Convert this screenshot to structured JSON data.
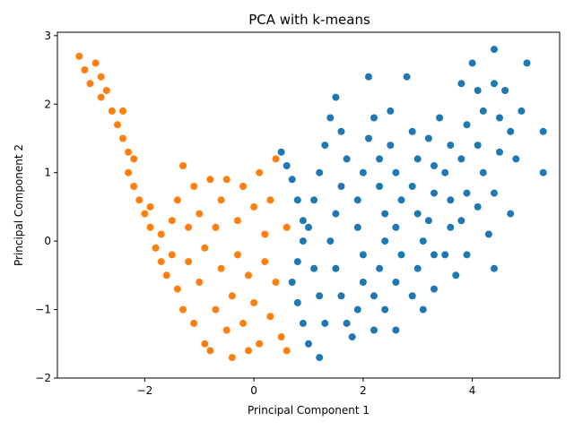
{
  "chart_data": {
    "type": "scatter",
    "title": "PCA with k-means",
    "xlabel": "Principal Component 1",
    "ylabel": "Principal Component 2",
    "xlim": [
      -3.6,
      5.6
    ],
    "ylim": [
      -2.0,
      3.05
    ],
    "xticks": [
      {
        "value": -2,
        "label": "−2"
      },
      {
        "value": 0,
        "label": "0"
      },
      {
        "value": 2,
        "label": "2"
      },
      {
        "value": 4,
        "label": "4"
      }
    ],
    "yticks": [
      {
        "value": -2,
        "label": "−2"
      },
      {
        "value": -1,
        "label": "−1"
      },
      {
        "value": 0,
        "label": "0"
      },
      {
        "value": 1,
        "label": "1"
      },
      {
        "value": 2,
        "label": "2"
      },
      {
        "value": 3,
        "label": "3"
      }
    ],
    "grid": false,
    "series": [
      {
        "color": "#1f77b4",
        "points": [
          [
            0.5,
            1.3
          ],
          [
            0.6,
            1.1
          ],
          [
            0.7,
            0.9
          ],
          [
            0.8,
            0.6
          ],
          [
            0.9,
            0.3
          ],
          [
            0.9,
            0.0
          ],
          [
            0.8,
            -0.3
          ],
          [
            0.7,
            -0.6
          ],
          [
            0.8,
            -0.9
          ],
          [
            0.9,
            -1.2
          ],
          [
            1.0,
            -1.5
          ],
          [
            1.2,
            -1.7
          ],
          [
            1.3,
            -1.2
          ],
          [
            1.2,
            -0.8
          ],
          [
            1.1,
            -0.4
          ],
          [
            1.0,
            0.2
          ],
          [
            1.1,
            0.6
          ],
          [
            1.2,
            1.0
          ],
          [
            1.3,
            1.4
          ],
          [
            1.4,
            1.8
          ],
          [
            1.5,
            2.1
          ],
          [
            1.6,
            1.6
          ],
          [
            1.7,
            1.2
          ],
          [
            1.6,
            0.8
          ],
          [
            1.5,
            0.4
          ],
          [
            1.4,
            0.0
          ],
          [
            1.5,
            -0.4
          ],
          [
            1.6,
            -0.8
          ],
          [
            1.7,
            -1.2
          ],
          [
            1.8,
            -1.4
          ],
          [
            1.9,
            -1.0
          ],
          [
            2.0,
            -0.6
          ],
          [
            2.0,
            -0.2
          ],
          [
            1.9,
            0.2
          ],
          [
            1.9,
            0.6
          ],
          [
            2.0,
            1.0
          ],
          [
            2.1,
            1.5
          ],
          [
            2.1,
            2.4
          ],
          [
            2.2,
            1.8
          ],
          [
            2.3,
            1.2
          ],
          [
            2.3,
            0.8
          ],
          [
            2.4,
            0.4
          ],
          [
            2.4,
            0.0
          ],
          [
            2.3,
            -0.4
          ],
          [
            2.2,
            -0.8
          ],
          [
            2.2,
            -1.3
          ],
          [
            2.4,
            -1.0
          ],
          [
            2.6,
            -1.3
          ],
          [
            2.6,
            -0.6
          ],
          [
            2.7,
            -0.2
          ],
          [
            2.6,
            0.2
          ],
          [
            2.7,
            0.6
          ],
          [
            2.6,
            1.0
          ],
          [
            2.5,
            1.4
          ],
          [
            2.5,
            1.9
          ],
          [
            2.8,
            2.4
          ],
          [
            2.9,
            1.6
          ],
          [
            3.0,
            1.2
          ],
          [
            2.9,
            0.8
          ],
          [
            3.0,
            0.4
          ],
          [
            3.1,
            0.0
          ],
          [
            3.0,
            -0.4
          ],
          [
            2.9,
            -0.8
          ],
          [
            3.1,
            -1.0
          ],
          [
            3.3,
            -0.7
          ],
          [
            3.3,
            -0.2
          ],
          [
            3.2,
            0.3
          ],
          [
            3.3,
            0.7
          ],
          [
            3.3,
            1.1
          ],
          [
            3.2,
            1.5
          ],
          [
            3.4,
            1.8
          ],
          [
            3.6,
            1.4
          ],
          [
            3.5,
            1.0
          ],
          [
            3.6,
            0.6
          ],
          [
            3.6,
            0.2
          ],
          [
            3.5,
            -0.2
          ],
          [
            3.7,
            -0.5
          ],
          [
            3.9,
            -0.2
          ],
          [
            3.8,
            0.3
          ],
          [
            3.9,
            0.7
          ],
          [
            3.8,
            1.2
          ],
          [
            3.9,
            1.7
          ],
          [
            3.8,
            2.3
          ],
          [
            4.1,
            2.2
          ],
          [
            4.0,
            2.6
          ],
          [
            4.2,
            1.9
          ],
          [
            4.1,
            1.4
          ],
          [
            4.2,
            1.0
          ],
          [
            4.1,
            0.5
          ],
          [
            4.3,
            0.1
          ],
          [
            4.4,
            -0.4
          ],
          [
            4.4,
            0.7
          ],
          [
            4.5,
            1.3
          ],
          [
            4.5,
            1.8
          ],
          [
            4.4,
            2.3
          ],
          [
            4.4,
            2.8
          ],
          [
            4.6,
            2.2
          ],
          [
            4.7,
            1.6
          ],
          [
            4.8,
            1.2
          ],
          [
            4.9,
            1.9
          ],
          [
            5.0,
            2.6
          ],
          [
            4.7,
            0.4
          ],
          [
            5.3,
            1.0
          ],
          [
            5.3,
            1.6
          ]
        ]
      },
      {
        "color": "#ff7f0e",
        "points": [
          [
            -3.2,
            2.7
          ],
          [
            -3.1,
            2.5
          ],
          [
            -3.0,
            2.3
          ],
          [
            -2.9,
            2.6
          ],
          [
            -2.8,
            2.4
          ],
          [
            -2.8,
            2.1
          ],
          [
            -2.7,
            2.2
          ],
          [
            -2.6,
            1.9
          ],
          [
            -2.5,
            1.7
          ],
          [
            -2.4,
            1.9
          ],
          [
            -2.4,
            1.5
          ],
          [
            -2.3,
            1.3
          ],
          [
            -2.3,
            1.0
          ],
          [
            -2.2,
            1.2
          ],
          [
            -2.2,
            0.8
          ],
          [
            -2.1,
            0.6
          ],
          [
            -2.0,
            0.4
          ],
          [
            -1.9,
            0.2
          ],
          [
            -1.9,
            0.5
          ],
          [
            -1.8,
            -0.1
          ],
          [
            -1.7,
            0.1
          ],
          [
            -1.7,
            -0.3
          ],
          [
            -1.6,
            -0.5
          ],
          [
            -1.5,
            -0.2
          ],
          [
            -1.5,
            0.3
          ],
          [
            -1.4,
            0.6
          ],
          [
            -1.4,
            -0.7
          ],
          [
            -1.3,
            -1.0
          ],
          [
            -1.3,
            1.1
          ],
          [
            -1.2,
            -0.3
          ],
          [
            -1.2,
            0.2
          ],
          [
            -1.1,
            -1.2
          ],
          [
            -1.1,
            0.8
          ],
          [
            -1.0,
            -0.6
          ],
          [
            -1.0,
            0.4
          ],
          [
            -0.9,
            -1.5
          ],
          [
            -0.9,
            -0.1
          ],
          [
            -0.8,
            0.9
          ],
          [
            -0.8,
            -1.6
          ],
          [
            -0.7,
            -1.0
          ],
          [
            -0.7,
            0.2
          ],
          [
            -0.6,
            -0.4
          ],
          [
            -0.6,
            0.6
          ],
          [
            -0.5,
            -1.3
          ],
          [
            -0.5,
            0.9
          ],
          [
            -0.4,
            -1.7
          ],
          [
            -0.4,
            -0.8
          ],
          [
            -0.3,
            0.3
          ],
          [
            -0.3,
            -0.2
          ],
          [
            -0.2,
            0.8
          ],
          [
            -0.2,
            -1.2
          ],
          [
            -0.1,
            -1.6
          ],
          [
            -0.1,
            -0.5
          ],
          [
            0.0,
            0.5
          ],
          [
            0.0,
            -0.9
          ],
          [
            0.1,
            -1.5
          ],
          [
            0.1,
            1.0
          ],
          [
            0.2,
            0.1
          ],
          [
            0.2,
            -0.3
          ],
          [
            0.3,
            0.6
          ],
          [
            0.3,
            -1.1
          ],
          [
            0.4,
            1.2
          ],
          [
            0.4,
            -0.6
          ],
          [
            0.5,
            -1.4
          ],
          [
            0.6,
            -1.6
          ],
          [
            0.6,
            0.2
          ]
        ]
      }
    ]
  }
}
